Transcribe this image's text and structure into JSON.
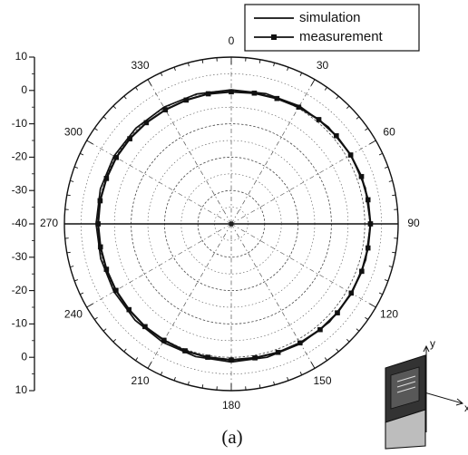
{
  "chart_data": {
    "type": "polar_line",
    "title": "",
    "caption": "(a)",
    "radial_axis": {
      "min": -40,
      "max": 10,
      "ticks": [
        10,
        0,
        -10,
        -20,
        -30,
        -40,
        -30,
        -20,
        -10,
        0,
        10
      ],
      "grid_levels": [
        -40,
        -35,
        -30,
        -25,
        -20,
        -15,
        -10,
        -5,
        0,
        5,
        10
      ],
      "major_levels": [
        -40,
        -30,
        -20,
        -10,
        0,
        10
      ]
    },
    "angular_axis": {
      "zero_location": "top",
      "direction": "clockwise",
      "labels": [
        0,
        30,
        60,
        90,
        120,
        150,
        180,
        210,
        240,
        270,
        300,
        330
      ]
    },
    "legend": {
      "position": "top-right",
      "entries": [
        {
          "name": "simulation",
          "color": "#111111",
          "marker": "none"
        },
        {
          "name": "measurement",
          "color": "#111111",
          "marker": "filled-square"
        }
      ]
    },
    "series": [
      {
        "name": "simulation",
        "style": "solid-line",
        "angles": [
          0,
          15,
          30,
          45,
          60,
          75,
          90,
          105,
          120,
          135,
          150,
          165,
          180,
          195,
          210,
          225,
          240,
          255,
          270,
          285,
          300,
          315,
          330,
          345
        ],
        "values": [
          0.2,
          0.4,
          0.8,
          1.1,
          1.4,
          1.6,
          1.7,
          1.7,
          1.7,
          1.6,
          1.5,
          1.4,
          1.4,
          1.2,
          1.0,
          0.8,
          0.6,
          0.5,
          0.5,
          0.6,
          0.6,
          0.5,
          0.4,
          0.3
        ]
      },
      {
        "name": "measurement",
        "style": "line-with-square-markers",
        "angles": [
          0,
          10,
          20,
          30,
          40,
          50,
          60,
          70,
          80,
          90,
          100,
          110,
          120,
          130,
          140,
          150,
          160,
          170,
          180,
          190,
          200,
          210,
          220,
          230,
          240,
          250,
          260,
          270,
          280,
          290,
          300,
          310,
          320,
          330,
          340,
          350
        ],
        "values": [
          -0.4,
          -0.2,
          0.0,
          0.4,
          0.8,
          1.1,
          1.3,
          1.5,
          1.6,
          1.7,
          1.6,
          1.6,
          1.5,
          1.5,
          1.4,
          1.2,
          1.0,
          0.8,
          0.8,
          0.6,
          0.5,
          0.3,
          0.2,
          0.0,
          -0.1,
          -0.2,
          -0.2,
          -0.1,
          -0.1,
          -0.2,
          -0.2,
          -0.3,
          -0.4,
          -0.5,
          -0.5,
          -0.4
        ]
      }
    ]
  },
  "inset": {
    "axis_labels": {
      "y": "y",
      "x": "x"
    },
    "colors": {
      "device_dark": "#333333",
      "device_light": "#bdbdbd",
      "stroke": "#111111"
    }
  }
}
